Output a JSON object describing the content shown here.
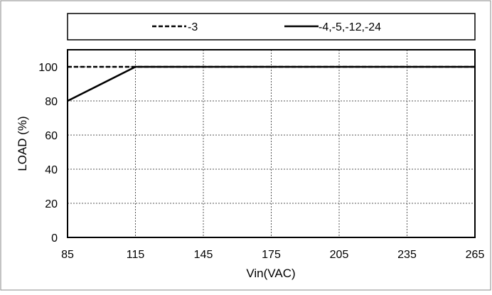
{
  "chart_data": {
    "type": "line",
    "title": "",
    "xlabel": "Vin(VAC)",
    "ylabel": "LOAD (%)",
    "xlim": [
      85,
      265
    ],
    "ylim": [
      0,
      110
    ],
    "xticks": [
      85,
      115,
      145,
      175,
      205,
      235,
      265
    ],
    "xtick_labels": [
      "85",
      "115",
      "145",
      "175",
      "205",
      "235",
      "265"
    ],
    "yticks": [
      0,
      20,
      40,
      60,
      80,
      100
    ],
    "ytick_labels": [
      "0",
      "20",
      "40",
      "60",
      "80",
      "100"
    ],
    "grid": true,
    "legend_position": "top",
    "series": [
      {
        "name": "-3",
        "style": "dashed",
        "color": "#000000",
        "x": [
          85,
          115,
          265
        ],
        "y": [
          100,
          100,
          100
        ]
      },
      {
        "name": "-4,-5,-12,-24",
        "style": "solid",
        "color": "#000000",
        "x": [
          85,
          115,
          265
        ],
        "y": [
          80,
          100,
          100
        ]
      }
    ]
  }
}
